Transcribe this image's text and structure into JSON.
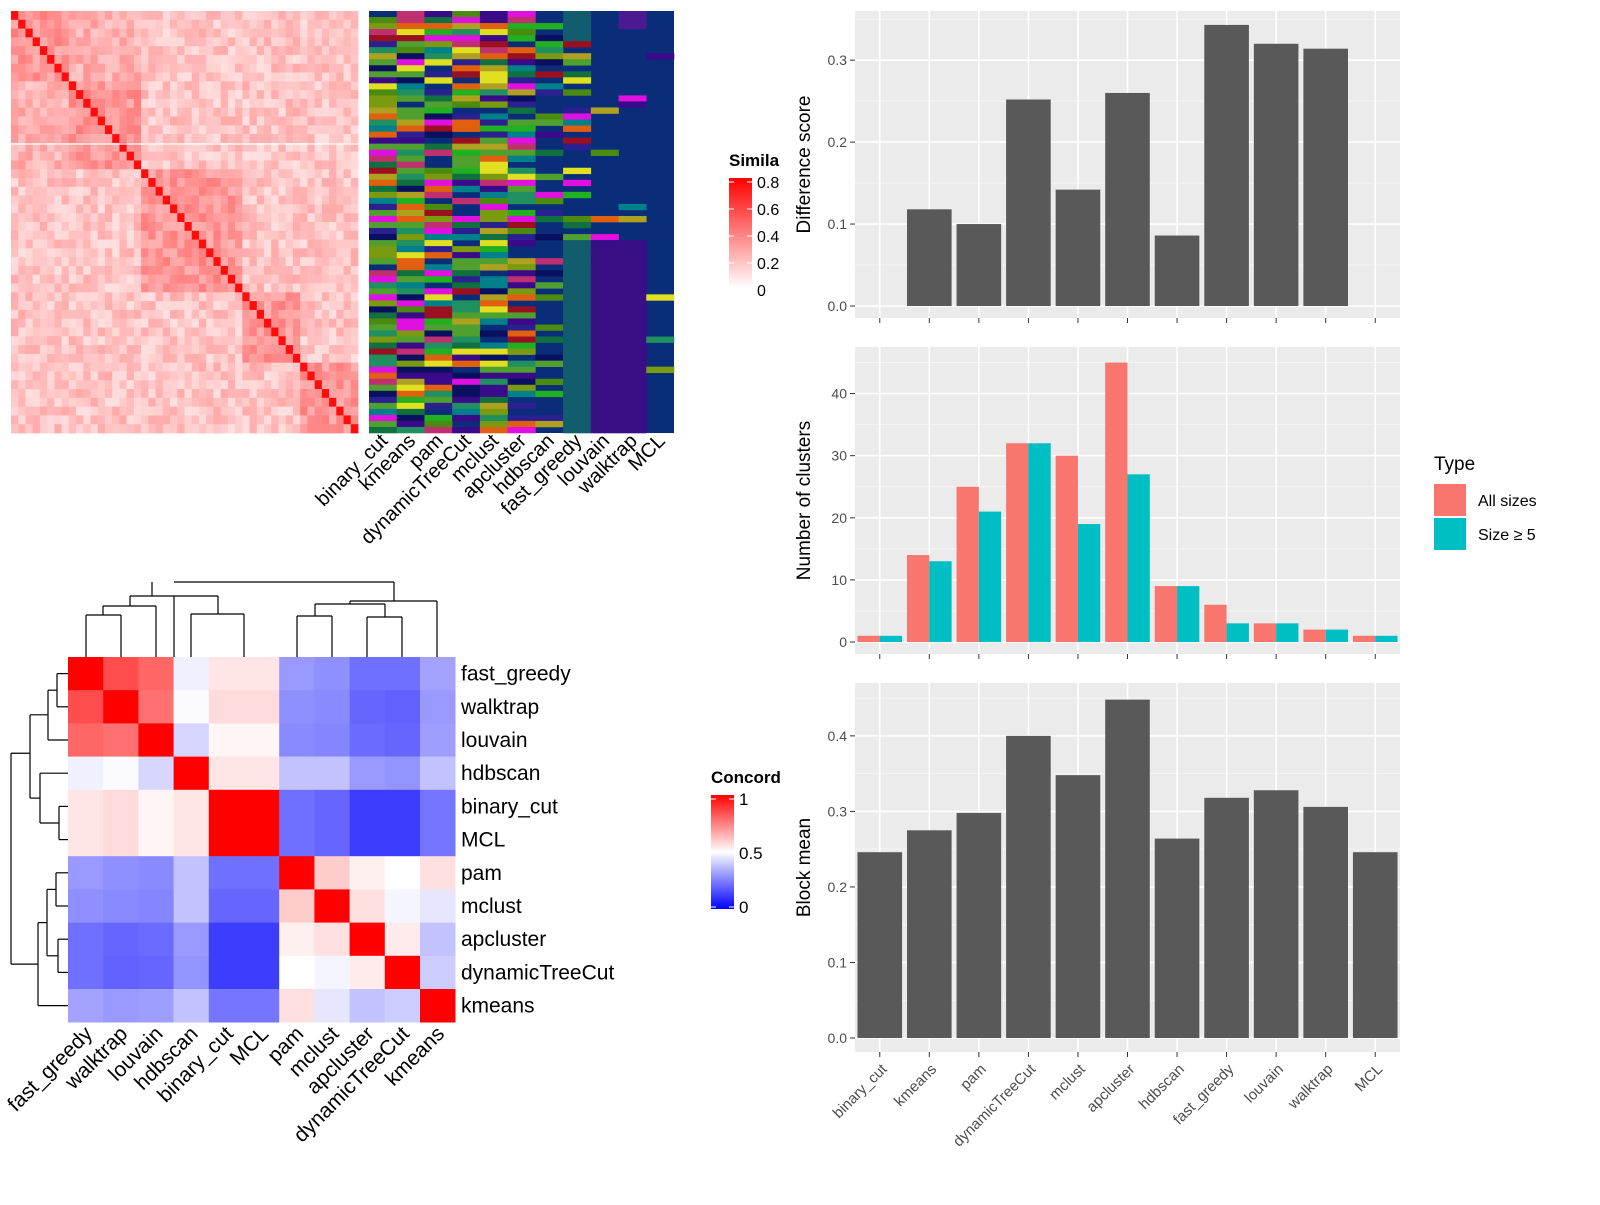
{
  "colors": {
    "similarity_high": "#ff0000",
    "similarity_low": "#ffffff",
    "concordance_high": "#ff0000",
    "concordance_mid": "#ffffff",
    "concordance_low": "#0000ff",
    "bar_fill": "#595959",
    "panel_bg": "#ebebeb",
    "all_sizes": "#f8766d",
    "size_ge5": "#00bfc4",
    "class_background": "#0a2d7a"
  },
  "similarity_heatmap": {
    "legend_title": "Simila",
    "legend_ticks": [
      "0.8",
      "0.6",
      "0.4",
      "0.2",
      "0"
    ],
    "class_columns": [
      "binary_cut",
      "kmeans",
      "pam",
      "dynamicTreeCut",
      "mclust",
      "apcluster",
      "hdbscan",
      "fast_greedy",
      "louvain",
      "walktrap",
      "MCL"
    ]
  },
  "concordance_heatmap": {
    "legend_title": "Concord",
    "legend_ticks": [
      "1",
      "0.5",
      "0"
    ],
    "methods": [
      "fast_greedy",
      "walktrap",
      "louvain",
      "hdbscan",
      "binary_cut",
      "MCL",
      "pam",
      "mclust",
      "apcluster",
      "dynamicTreeCut",
      "kmeans"
    ],
    "matrix": [
      [
        1.0,
        0.85,
        0.8,
        0.47,
        0.55,
        0.55,
        0.3,
        0.28,
        0.22,
        0.22,
        0.32
      ],
      [
        0.85,
        1.0,
        0.78,
        0.49,
        0.57,
        0.57,
        0.28,
        0.27,
        0.2,
        0.19,
        0.3
      ],
      [
        0.8,
        0.78,
        1.0,
        0.42,
        0.52,
        0.52,
        0.27,
        0.26,
        0.21,
        0.2,
        0.31
      ],
      [
        0.47,
        0.49,
        0.42,
        1.0,
        0.55,
        0.55,
        0.38,
        0.38,
        0.3,
        0.29,
        0.38
      ],
      [
        0.55,
        0.57,
        0.52,
        0.55,
        1.0,
        1.0,
        0.22,
        0.2,
        0.12,
        0.12,
        0.23
      ],
      [
        0.55,
        0.57,
        0.52,
        0.55,
        1.0,
        1.0,
        0.22,
        0.2,
        0.12,
        0.12,
        0.23
      ],
      [
        0.3,
        0.28,
        0.27,
        0.38,
        0.22,
        0.22,
        1.0,
        0.6,
        0.53,
        0.5,
        0.56
      ],
      [
        0.28,
        0.27,
        0.26,
        0.38,
        0.2,
        0.2,
        0.6,
        1.0,
        0.56,
        0.48,
        0.45
      ],
      [
        0.22,
        0.2,
        0.21,
        0.3,
        0.12,
        0.12,
        0.53,
        0.56,
        1.0,
        0.54,
        0.38
      ],
      [
        0.22,
        0.19,
        0.2,
        0.29,
        0.12,
        0.12,
        0.5,
        0.48,
        0.54,
        1.0,
        0.4
      ],
      [
        0.32,
        0.3,
        0.31,
        0.38,
        0.23,
        0.23,
        0.56,
        0.45,
        0.38,
        0.4,
        1.0
      ]
    ]
  },
  "chart_data": [
    {
      "type": "bar",
      "categories": [
        "binary_cut",
        "kmeans",
        "pam",
        "dynamicTreeCut",
        "mclust",
        "apcluster",
        "hdbscan",
        "fast_greedy",
        "louvain",
        "walktrap",
        "MCL"
      ],
      "values": [
        0,
        0.118,
        0.1,
        0.252,
        0.142,
        0.26,
        0.086,
        0.343,
        0.32,
        0.314,
        0
      ],
      "title": "",
      "xlabel": "",
      "ylabel": "Difference score",
      "ylim": [
        0,
        0.36
      ],
      "yticks": [
        "0.0",
        "0.1",
        "0.2",
        "0.3"
      ],
      "grid": true
    },
    {
      "type": "bar",
      "categories": [
        "binary_cut",
        "kmeans",
        "pam",
        "dynamicTreeCut",
        "mclust",
        "apcluster",
        "hdbscan",
        "fast_greedy",
        "louvain",
        "walktrap",
        "MCL"
      ],
      "series": [
        {
          "name": "All sizes",
          "values": [
            1,
            14,
            25,
            32,
            30,
            45,
            9,
            6,
            3,
            2,
            1
          ]
        },
        {
          "name": "Size ≥ 5",
          "values": [
            1,
            13,
            21,
            32,
            19,
            27,
            9,
            3,
            3,
            2,
            1
          ]
        }
      ],
      "title": "",
      "xlabel": "",
      "ylabel": "Number of clusters",
      "ylim": [
        0,
        47.5
      ],
      "yticks": [
        "0",
        "10",
        "20",
        "30",
        "40"
      ],
      "legend_title": "Type",
      "legend": "right",
      "grid": true
    },
    {
      "type": "bar",
      "categories": [
        "binary_cut",
        "kmeans",
        "pam",
        "dynamicTreeCut",
        "mclust",
        "apcluster",
        "hdbscan",
        "fast_greedy",
        "louvain",
        "walktrap",
        "MCL"
      ],
      "values": [
        0.246,
        0.275,
        0.298,
        0.4,
        0.348,
        0.448,
        0.264,
        0.318,
        0.328,
        0.306,
        0.246
      ],
      "title": "",
      "xlabel": "",
      "ylabel": "Block mean",
      "ylim": [
        0,
        0.47
      ],
      "yticks": [
        "0.0",
        "0.1",
        "0.2",
        "0.3",
        "0.4"
      ],
      "grid": true
    }
  ]
}
